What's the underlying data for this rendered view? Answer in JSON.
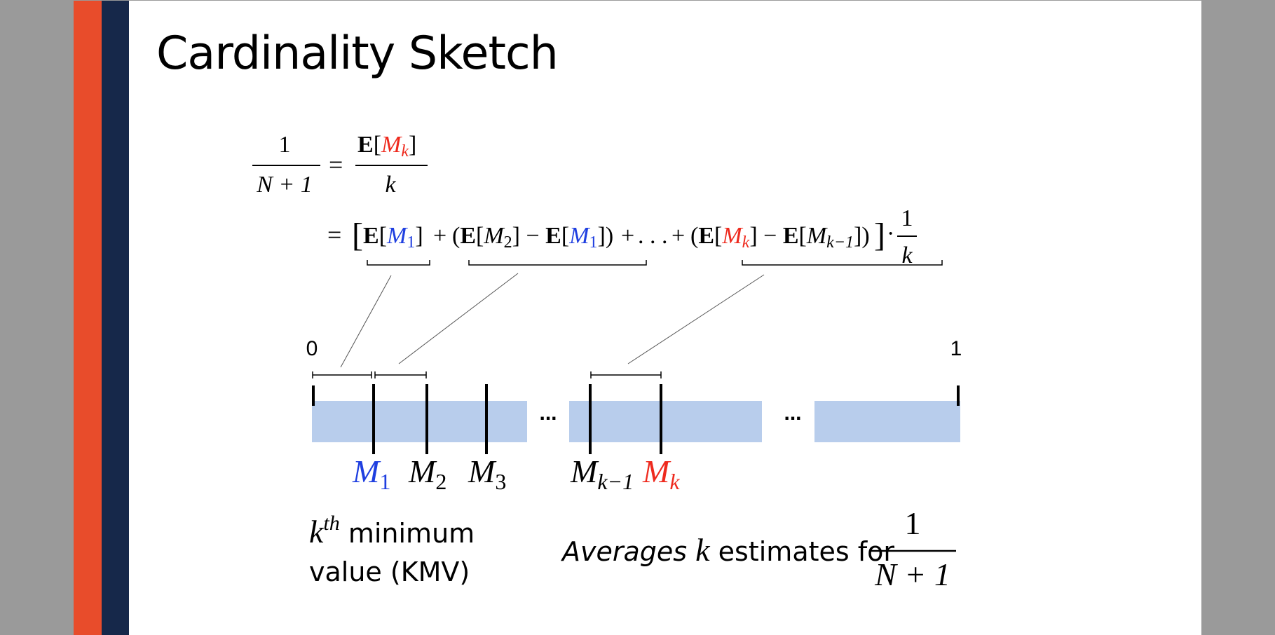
{
  "slide": {
    "title": "Cardinality Sketch",
    "colors": {
      "accent_orange": "#e84c2b",
      "accent_navy": "#16284a",
      "interval_fill": "#b8cdec",
      "blue": "#1f3fe0",
      "red": "#ee2a1e"
    }
  },
  "equation": {
    "line1_lhs_num": "1",
    "line1_lhs_den": "N + 1",
    "line1_rhs_num_E": "E",
    "line1_rhs_num_M": "M",
    "line1_rhs_num_sub": "k",
    "line1_rhs_den": "k",
    "line2_terms": [
      {
        "E1": "E",
        "M1": "M",
        "s1": "1"
      },
      {
        "E1": "E",
        "M1": "M",
        "s1": "2",
        "E2": "E",
        "M2": "M",
        "s2": "1"
      },
      {
        "E1": "E",
        "M1": "M",
        "s1": "k",
        "E2": "E",
        "M2": "M",
        "s2": "k−1"
      }
    ],
    "ellipsis": ". . .",
    "line2_frac_num": "1",
    "line2_frac_den": "k"
  },
  "number_line": {
    "left_label": "0",
    "right_label": "1",
    "gap_marker": "...",
    "point_labels": [
      {
        "M": "M",
        "sub": "1"
      },
      {
        "M": "M",
        "sub": "2"
      },
      {
        "M": "M",
        "sub": "3"
      },
      {
        "M": "M",
        "sub": "k−1"
      },
      {
        "M": "M",
        "sub": "k"
      }
    ]
  },
  "labels": {
    "kmv_k": "k",
    "kmv_sup": "th",
    "kmv_line1_rest": " minimum",
    "kmv_line2": "value (KMV)",
    "avg_italic": "Averages",
    "avg_k": "k",
    "avg_rest": " estimates for",
    "avg_frac_num": "1",
    "avg_frac_den": "N + 1"
  }
}
